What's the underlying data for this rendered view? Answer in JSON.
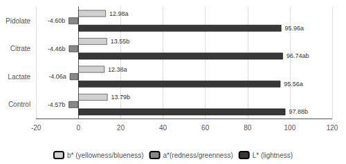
{
  "chart_data": {
    "type": "bar",
    "orientation": "horizontal",
    "categories": [
      "Pidolate",
      "Citrate",
      "Lactate",
      "Control"
    ],
    "series": [
      {
        "name": "b* (yellowness/blueness)",
        "color": "#d0d0d0",
        "values": [
          12.98,
          13.55,
          12.38,
          13.79
        ],
        "value_labels": [
          "12.98a",
          "13.55b",
          "12.38a",
          "13.79b"
        ]
      },
      {
        "name": "a*(redness/greenness)",
        "color": "#888888",
        "values": [
          -4.6,
          -4.46,
          -4.06,
          -4.57
        ],
        "value_labels": [
          "-4.60b",
          "-4.46b",
          "-4.06a",
          "-4.57b"
        ]
      },
      {
        "name": "L* (lightness)",
        "color": "#383838",
        "values": [
          95.96,
          96.74,
          95.56,
          97.88
        ],
        "value_labels": [
          "95.96a",
          "96.74ab",
          "95.56a",
          "97.88b"
        ]
      }
    ],
    "xlim": [
      -20,
      120
    ],
    "xticks": [
      -20,
      0,
      20,
      40,
      60,
      80,
      100,
      120
    ],
    "grid": true,
    "legend": "bottom",
    "data_labels": true
  }
}
